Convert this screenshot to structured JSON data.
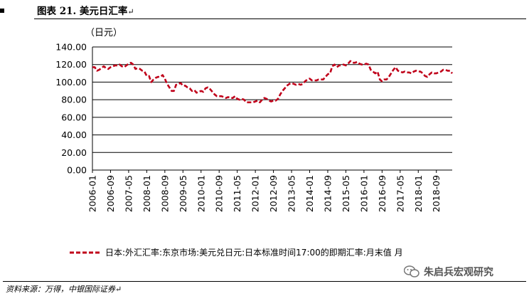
{
  "header": {
    "title": "图表 21. 美元日汇率",
    "para_mark": "↵"
  },
  "chart_data": {
    "type": "line",
    "ylabel": "（日元）",
    "ylim": [
      0,
      140
    ],
    "yticks": [
      "0.00",
      "20.00",
      "40.00",
      "60.00",
      "80.00",
      "100.00",
      "120.00",
      "140.00"
    ],
    "xticks": [
      "2006-01",
      "2006-09",
      "2007-05",
      "2008-01",
      "2008-09",
      "2009-05",
      "2010-01",
      "2010-09",
      "2011-05",
      "2012-01",
      "2012-09",
      "2013-05",
      "2014-01",
      "2014-09",
      "2015-05",
      "2016-01",
      "2016-09",
      "2017-05",
      "2018-01",
      "2018-09"
    ],
    "grid": true,
    "legend_position": "bottom",
    "series": [
      {
        "name": "日本:外汇汇率:东京市场:美元兑日元:日本标准时间17:00的即期汇率:月末值  月",
        "color": "#c0001a",
        "style": "dashed",
        "start": "2006-01",
        "values": [
          117,
          117,
          113,
          114,
          116,
          118,
          116,
          115,
          117,
          118,
          119,
          119,
          120,
          118,
          117,
          119,
          121,
          122,
          120,
          115,
          116,
          115,
          113,
          112,
          107,
          107,
          100,
          103,
          105,
          106,
          106,
          108,
          104,
          98,
          94,
          90,
          90,
          97,
          98,
          99,
          96,
          96,
          94,
          93,
          90,
          91,
          88,
          89,
          90,
          89,
          93,
          94,
          92,
          89,
          86,
          84,
          84,
          84,
          83,
          82,
          83,
          82,
          82,
          84,
          81,
          80,
          81,
          80,
          77,
          77,
          77,
          77,
          78,
          79,
          77,
          80,
          82,
          81,
          79,
          78,
          79,
          79,
          81,
          86,
          90,
          93,
          96,
          98,
          99,
          98,
          97,
          98,
          97,
          98,
          101,
          103,
          104,
          102,
          102,
          102,
          103,
          103,
          103,
          106,
          109,
          110,
          118,
          120,
          117,
          119,
          119,
          120,
          119,
          121,
          124,
          122,
          122,
          123,
          121,
          120,
          120,
          121,
          120,
          114,
          112,
          110,
          112,
          103,
          101,
          103,
          103,
          106,
          110,
          114,
          117,
          113,
          112,
          111,
          112,
          111,
          111,
          110,
          112,
          113,
          112,
          112,
          110,
          107,
          106,
          109,
          111,
          110,
          110,
          111,
          112,
          114,
          114,
          113,
          113,
          110
        ]
      }
    ]
  },
  "source": "资料来源：万得，中银国际证券↵",
  "watermark": "朱启兵宏观研究"
}
